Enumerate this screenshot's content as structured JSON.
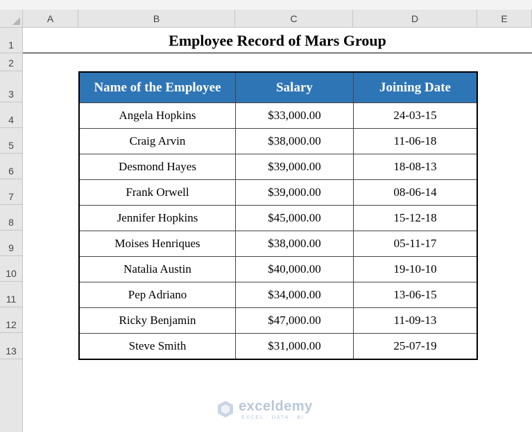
{
  "columns": [
    "A",
    "B",
    "C",
    "D",
    "E"
  ],
  "rows": [
    "1",
    "2",
    "3",
    "4",
    "5",
    "6",
    "7",
    "8",
    "9",
    "10",
    "11",
    "12",
    "13"
  ],
  "title": "Employee Record of Mars Group",
  "table": {
    "headers": [
      "Name of the Employee",
      "Salary",
      "Joining Date"
    ],
    "rows": [
      [
        "Angela Hopkins",
        "$33,000.00",
        "24-03-15"
      ],
      [
        "Craig Arvin",
        "$38,000.00",
        "11-06-18"
      ],
      [
        "Desmond Hayes",
        "$39,000.00",
        "18-08-13"
      ],
      [
        "Frank Orwell",
        "$39,000.00",
        "08-06-14"
      ],
      [
        "Jennifer Hopkins",
        "$45,000.00",
        "15-12-18"
      ],
      [
        "Moises Henriques",
        "$38,000.00",
        "05-11-17"
      ],
      [
        "Natalia Austin",
        "$40,000.00",
        "19-10-10"
      ],
      [
        "Pep Adriano",
        "$34,000.00",
        "13-06-15"
      ],
      [
        "Ricky Benjamin",
        "$47,000.00",
        "11-09-13"
      ],
      [
        "Steve Smith",
        "$31,000.00",
        "25-07-19"
      ]
    ]
  },
  "watermark": {
    "name": "exceldemy",
    "tagline": "EXCEL · DATA · BI"
  },
  "colors": {
    "header_fill": "#2e75b6",
    "header_text": "#ffffff",
    "gridline_header": "#e6e6e6",
    "watermark": "#b9c7da"
  }
}
